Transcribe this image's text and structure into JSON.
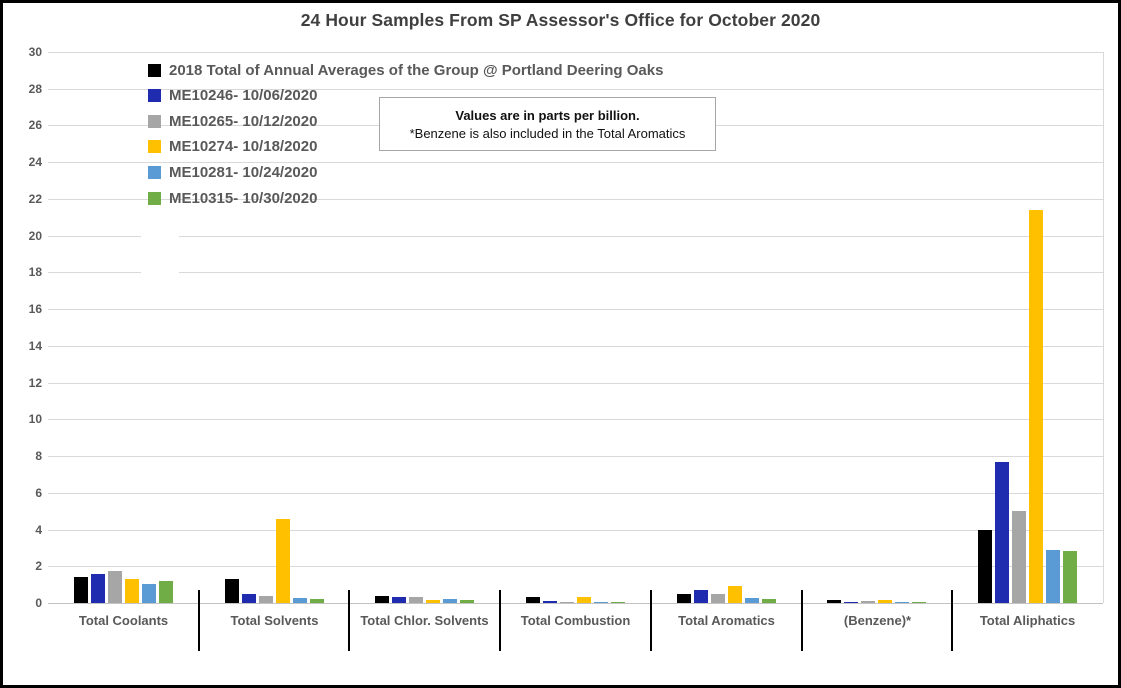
{
  "title": "24 Hour Samples From SP Assessor's Office for October 2020",
  "annotation": {
    "line1": "Values are in parts per billion.",
    "line2": "*Benzene is also included in the Total Aromatics"
  },
  "chart_data": {
    "type": "bar",
    "title": "24 Hour Samples From SP Assessor's Office for October 2020",
    "unit": "parts per billion",
    "categories": [
      "Total Coolants",
      "Total Solvents",
      "Total Chlor. Solvents",
      "Total Combustion",
      "Total Aromatics",
      "(Benzene)*",
      "Total Aliphatics"
    ],
    "series": [
      {
        "name": "2018 Total of Annual Averages of the Group @ Portland Deering Oaks",
        "color": "#000000",
        "values": [
          1.4,
          1.3,
          0.4,
          0.3,
          0.5,
          0.15,
          4.0
        ]
      },
      {
        "name": "ME10246- 10/06/2020",
        "color": "#1f2cb0",
        "values": [
          1.6,
          0.5,
          0.3,
          0.12,
          0.7,
          0.07,
          7.7
        ]
      },
      {
        "name": "ME10265- 10/12/2020",
        "color": "#a6a6a6",
        "values": [
          1.75,
          0.4,
          0.3,
          0.05,
          0.5,
          0.1,
          5.0
        ]
      },
      {
        "name": "ME10274- 10/18/2020",
        "color": "#ffc000",
        "values": [
          1.3,
          4.6,
          0.15,
          0.35,
          0.9,
          0.15,
          21.4
        ]
      },
      {
        "name": "ME10281- 10/24/2020",
        "color": "#5b9bd5",
        "values": [
          1.05,
          0.25,
          0.2,
          0.07,
          0.25,
          0.06,
          2.9
        ]
      },
      {
        "name": "ME10315- 10/30/2020",
        "color": "#70ad47",
        "values": [
          1.2,
          0.2,
          0.18,
          0.02,
          0.22,
          0.07,
          2.85
        ]
      }
    ],
    "ylim": [
      0,
      30
    ],
    "ytick_step": 2,
    "grid": true,
    "legend_position": "top-left-inside",
    "annotations": [
      "Values are in parts per billion.",
      "*Benzene is also included in the Total Aromatics"
    ]
  }
}
